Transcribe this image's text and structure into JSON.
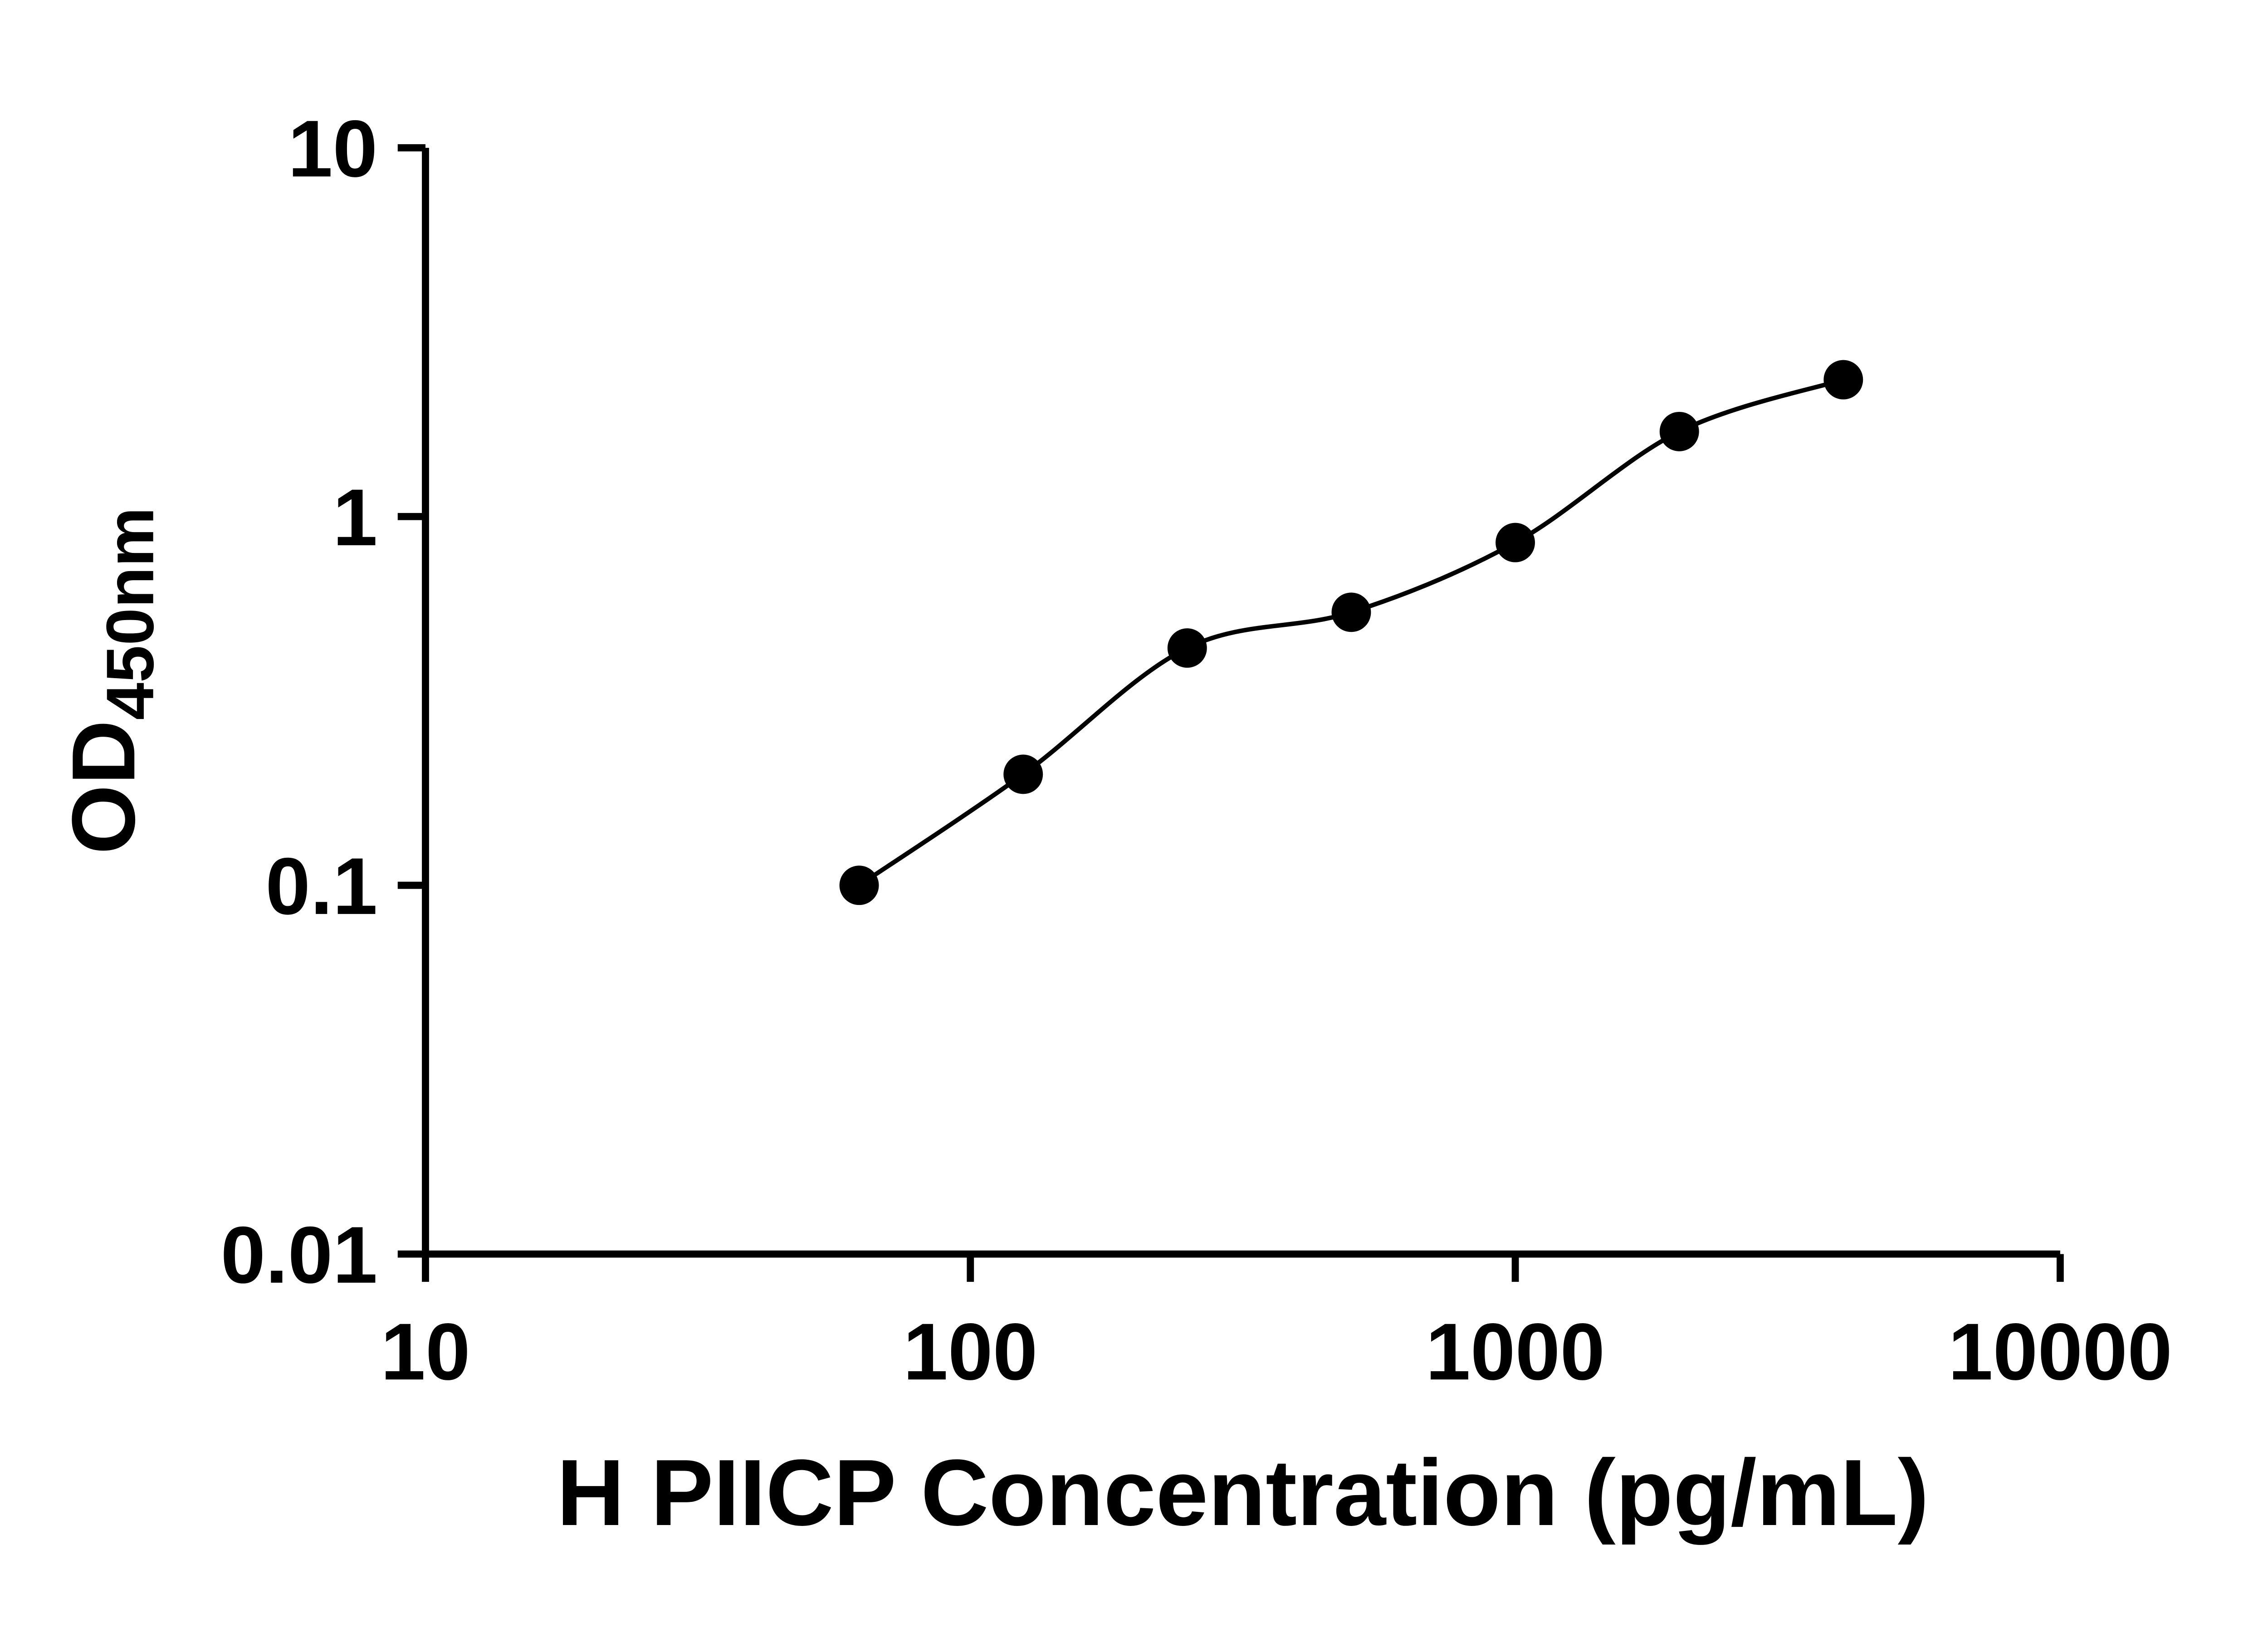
{
  "colors": {
    "foreground": "#000000",
    "background": "#ffffff"
  },
  "chart_data": {
    "type": "scatter",
    "subtype": "standard-curve-with-smooth-fit-line",
    "title": "",
    "xlabel": "H PIICP Concentration (pg/mL)",
    "ylabel_main": "OD",
    "ylabel_sub": "450nm",
    "x_scale": "log10",
    "y_scale": "log10",
    "xlim": [
      10,
      10000
    ],
    "ylim": [
      0.01,
      10
    ],
    "x_tick_values": [
      10,
      100,
      1000,
      10000
    ],
    "x_tick_labels": [
      "10",
      "100",
      "1000",
      "10000"
    ],
    "y_tick_values": [
      0.01,
      0.1,
      1,
      10
    ],
    "y_tick_labels": [
      "0.01",
      "0.1",
      "1",
      "10"
    ],
    "grid": false,
    "legend": "none",
    "series": [
      {
        "marker": "filled-circle",
        "line": "smooth-fit",
        "points": [
          {
            "x": 62.5,
            "y": 0.1
          },
          {
            "x": 125,
            "y": 0.2
          },
          {
            "x": 250,
            "y": 0.44
          },
          {
            "x": 500,
            "y": 0.55
          },
          {
            "x": 1000,
            "y": 0.85
          },
          {
            "x": 2000,
            "y": 1.7
          },
          {
            "x": 4000,
            "y": 2.35
          }
        ]
      }
    ]
  }
}
